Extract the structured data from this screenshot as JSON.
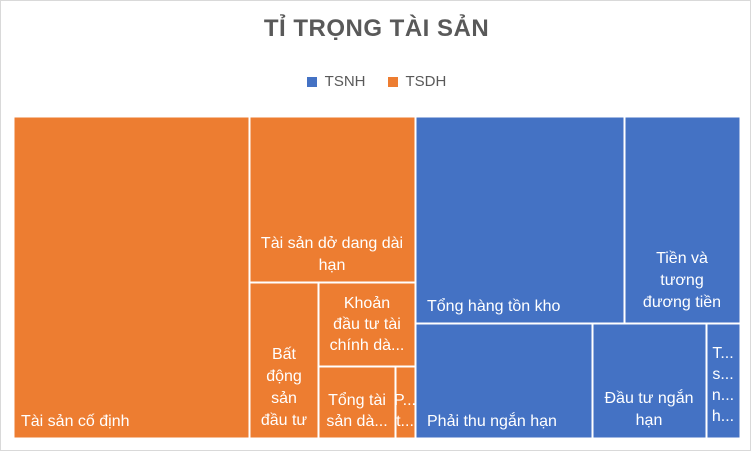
{
  "chart_data": {
    "type": "treemap",
    "title": "TỈ TRỌNG TÀI SẢN",
    "legend_position": "top",
    "series": [
      {
        "name": "TSNH",
        "color": "#4472C4"
      },
      {
        "name": "TSDH",
        "color": "#ED7D31"
      }
    ],
    "items": [
      {
        "label": "Tài sản cố định",
        "group": "TSDH",
        "display": [
          "Tài sản cố định"
        ]
      },
      {
        "label": "Tài sản dở dang dài hạn",
        "group": "TSDH",
        "display": [
          "Tài sản dở dang dài",
          "hạn"
        ]
      },
      {
        "label": "Bất động sản đầu tư",
        "group": "TSDH",
        "display": [
          "Bất",
          "động",
          "sản",
          "đầu tư"
        ]
      },
      {
        "label": "Khoản đầu tư tài chính dài hạn",
        "group": "TSDH",
        "display": [
          "Khoản",
          "đầu tư tài",
          "chính dà..."
        ]
      },
      {
        "label": "Tổng tài sản dài hạn",
        "group": "TSDH",
        "display": [
          "Tổng tài",
          "sản dà..."
        ]
      },
      {
        "label": "P...",
        "group": "TSDH",
        "display": [
          "P...",
          "t..."
        ]
      },
      {
        "label": "Tổng hàng tồn kho",
        "group": "TSNH",
        "display": [
          "Tổng hàng tồn kho"
        ]
      },
      {
        "label": "Tiền và tương đương tiền",
        "group": "TSNH",
        "display": [
          "Tiền và",
          "tương",
          "đương tiền"
        ]
      },
      {
        "label": "Phải thu ngắn hạn",
        "group": "TSNH",
        "display": [
          "Phải thu ngắn hạn"
        ]
      },
      {
        "label": "Đầu tư ngắn hạn",
        "group": "TSNH",
        "display": [
          "Đầu tư ngắn",
          "hạn"
        ]
      },
      {
        "label": "T...",
        "group": "TSNH",
        "display": [
          "T...",
          "s...",
          "n...",
          "h..."
        ]
      }
    ]
  }
}
